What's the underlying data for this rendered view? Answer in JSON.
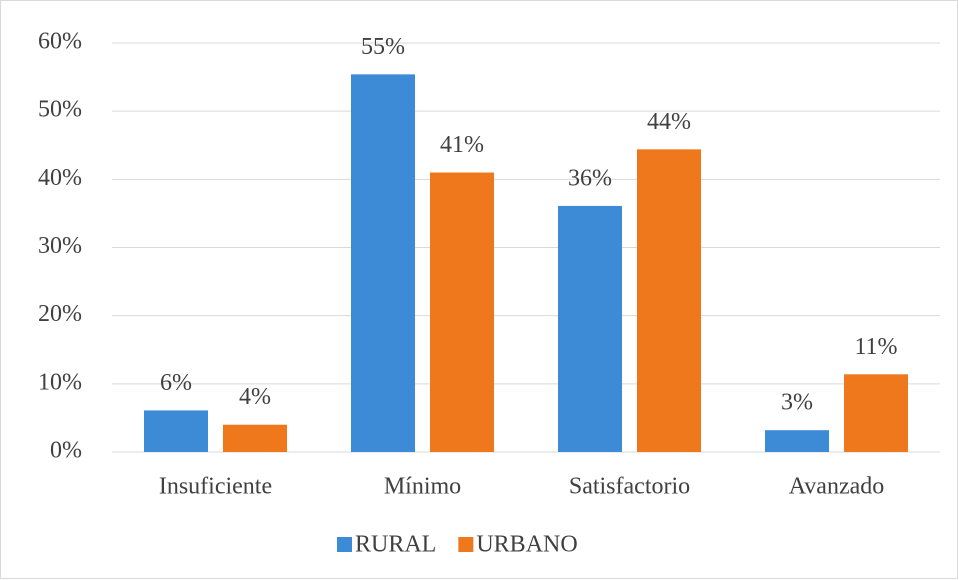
{
  "chart_data": {
    "type": "bar",
    "categories": [
      "Insuficiente",
      "Mínimo",
      "Satisfactorio",
      "Avanzado"
    ],
    "series": [
      {
        "name": "RURAL",
        "color": "#3d8bd6",
        "values": [
          6.1,
          55.4,
          36.1,
          3.2
        ],
        "value_labels": [
          "6%",
          "55%",
          "36%",
          "3%"
        ]
      },
      {
        "name": "URBANO",
        "color": "#f0781c",
        "values": [
          4.0,
          41.0,
          44.4,
          11.4
        ],
        "value_labels": [
          "4%",
          "41%",
          "44%",
          "11%"
        ]
      }
    ],
    "ylim": [
      0,
      60
    ],
    "yticks": [
      {
        "value": 0,
        "label": "0%"
      },
      {
        "value": 10,
        "label": "10%"
      },
      {
        "value": 20,
        "label": "20%"
      },
      {
        "value": 30,
        "label": "30%"
      },
      {
        "value": 40,
        "label": "40%"
      },
      {
        "value": 50,
        "label": "50%"
      },
      {
        "value": 60,
        "label": "60%"
      }
    ],
    "grid": true,
    "legend": "bottom"
  }
}
